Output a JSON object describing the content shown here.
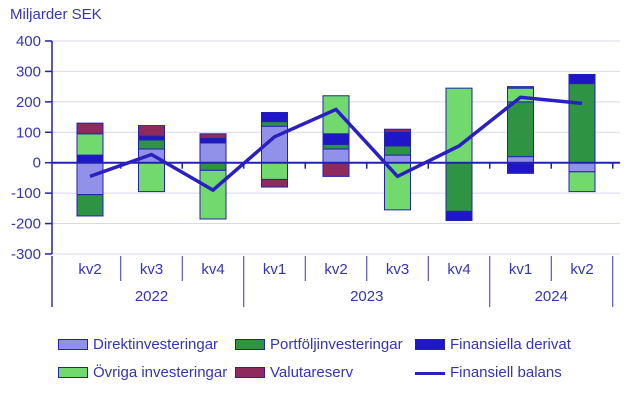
{
  "title": "Miljarder SEK",
  "chart_data": {
    "type": "bar",
    "subtype": "stacked-bars-with-line-overlay",
    "title": "Miljarder SEK",
    "ylabel": "Miljarder SEK",
    "ylim": [
      -300,
      400
    ],
    "yticks": [
      400,
      300,
      200,
      100,
      0,
      -100,
      -200,
      -300
    ],
    "grid": true,
    "legend_position": "bottom",
    "categories": [
      "kv2",
      "kv3",
      "kv4",
      "kv1",
      "kv2",
      "kv3",
      "kv4",
      "kv1",
      "kv2"
    ],
    "year_groups": [
      {
        "label": "2022",
        "from": 0,
        "to": 2
      },
      {
        "label": "2023",
        "from": 3,
        "to": 6
      },
      {
        "label": "2024",
        "from": 7,
        "to": 8
      }
    ],
    "series": [
      {
        "name": "Direktinvesteringar",
        "color": "#9191ea",
        "values": [
          -105,
          45,
          65,
          120,
          45,
          25,
          0,
          20,
          -30
        ]
      },
      {
        "name": "Portföljinvesteringar",
        "color": "#2e9444",
        "values": [
          -70,
          30,
          -25,
          15,
          15,
          30,
          -160,
          180,
          260
        ]
      },
      {
        "name": "Finansiella derivat",
        "color": "#1f16c8",
        "values": [
          25,
          12,
          15,
          30,
          35,
          45,
          -30,
          -35,
          30
        ]
      },
      {
        "name": "Övriga investeringar",
        "color": "#72d96e",
        "values": [
          70,
          -95,
          -160,
          -55,
          125,
          -155,
          245,
          45,
          -65
        ]
      },
      {
        "name": "Valutareserv",
        "color": "#8e2a5c",
        "values": [
          35,
          35,
          15,
          -25,
          -45,
          10,
          0,
          5,
          0
        ]
      }
    ],
    "line_series": {
      "name": "Finansiell balans",
      "color": "#2a1fc0",
      "values": [
        -45,
        27,
        -90,
        85,
        175,
        -45,
        55,
        215,
        195
      ]
    }
  },
  "legend": {
    "items": [
      {
        "label": "Direktinvesteringar",
        "color": "#9191ea",
        "type": "box"
      },
      {
        "label": "Portföljinvesteringar",
        "color": "#2e9444",
        "type": "box"
      },
      {
        "label": "Finansiella derivat",
        "color": "#1f16c8",
        "type": "box"
      },
      {
        "label": "Övriga investeringar",
        "color": "#72d96e",
        "type": "box"
      },
      {
        "label": "Valutareserv",
        "color": "#8e2a5c",
        "type": "box"
      },
      {
        "label": "Finansiell balans",
        "color": "#2a1fc0",
        "type": "line"
      }
    ]
  },
  "colors": {
    "axis": "#2222b0",
    "grid": "#d8d8f0",
    "text": "#3434b8",
    "background": "#ffffff"
  }
}
